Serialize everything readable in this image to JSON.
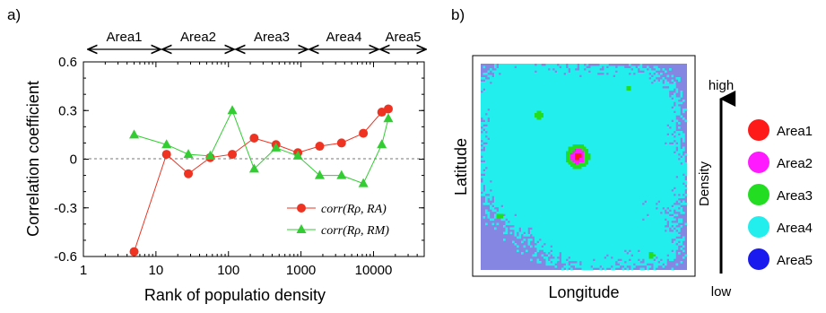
{
  "panel_a": {
    "label": "a)",
    "areas": [
      "Area1",
      "Area2",
      "Area3",
      "Area4",
      "Area5"
    ]
  },
  "panel_b": {
    "label": "b)",
    "xlabel": "Longitude",
    "ylabel": "Latitude",
    "scale_high": "high",
    "scale_low": "low",
    "scale_label": "Density",
    "legend": [
      {
        "name": "Area1",
        "color": "#ff1a1a"
      },
      {
        "name": "Area2",
        "color": "#ff1aff"
      },
      {
        "name": "Area3",
        "color": "#22dd22"
      },
      {
        "name": "Area4",
        "color": "#22eeee"
      },
      {
        "name": "Area5",
        "color": "#1a1aee"
      }
    ]
  },
  "chart_data": {
    "type": "line",
    "xscale": "log",
    "xlim": [
      1,
      50000
    ],
    "ylim": [
      -0.6,
      0.6
    ],
    "xticks": [
      "1",
      "10",
      "100",
      "1000",
      "10000"
    ],
    "yticks": [
      "-0.6",
      "-0.3",
      "0",
      "0.3",
      "0.6"
    ],
    "xlabel": "Rank of populatio density",
    "ylabel": "Correlation coefficient",
    "legend_position": "lower-right",
    "series": [
      {
        "name": "corr(Rρ, RA)",
        "color": "#ee3322",
        "marker": "circle",
        "x": [
          5,
          14,
          28,
          56,
          113,
          226,
          452,
          905,
          1810,
          3620,
          7240,
          13000,
          16000
        ],
        "y": [
          -0.57,
          0.03,
          -0.09,
          0.01,
          0.03,
          0.13,
          0.09,
          0.04,
          0.08,
          0.1,
          0.16,
          0.29,
          0.31
        ]
      },
      {
        "name": "corr(Rρ, RM)",
        "color": "#33cc33",
        "marker": "triangle",
        "x": [
          5,
          14,
          28,
          56,
          113,
          226,
          452,
          905,
          1810,
          3620,
          7240,
          13000,
          16000
        ],
        "y": [
          0.15,
          0.09,
          0.03,
          0.02,
          0.3,
          -0.06,
          0.07,
          0.02,
          -0.1,
          -0.1,
          -0.15,
          0.09,
          0.25
        ]
      }
    ]
  }
}
